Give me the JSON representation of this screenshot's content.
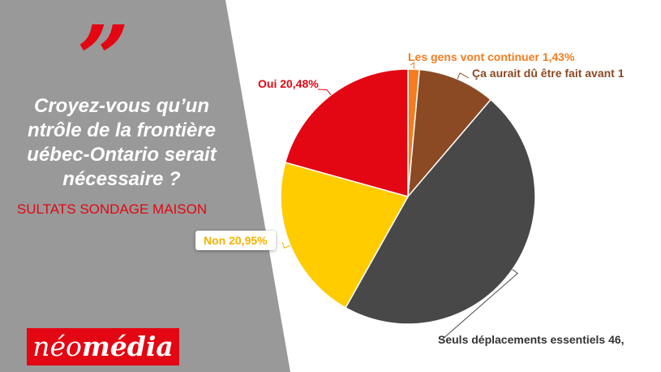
{
  "brand": {
    "quote_glyph": "”",
    "logo_regular": "néo",
    "logo_bold": "média",
    "logo_color": "#e30613"
  },
  "question_lines": [
    "Croyez-vous qu’un",
    "ntrôle de la frontière",
    "uébec-Ontario serait",
    "nécessaire ?"
  ],
  "subtitle": "SULTATS SONDAGE MAISON",
  "colors": {
    "panel_gray": "#999999",
    "accent_red": "#e30613"
  },
  "chart_data": {
    "type": "pie",
    "title": "",
    "start_angle_deg": 90,
    "direction": "clockwise",
    "slices": [
      {
        "label": "Les gens vont continuer 1,43%",
        "value": 1.43,
        "color": "#f47c20"
      },
      {
        "label": "Ça aurait dû être fait avant 1",
        "value": 9.72,
        "color": "#8b4a23"
      },
      {
        "label": "Seuls déplacements essentiels 46,",
        "value": 46.42,
        "color": "#484848"
      },
      {
        "label": "Non 20,95%",
        "value": 20.95,
        "color": "#ffcc00"
      },
      {
        "label": "Oui 20,48%",
        "value": 20.48,
        "color": "#e30613"
      }
    ]
  }
}
